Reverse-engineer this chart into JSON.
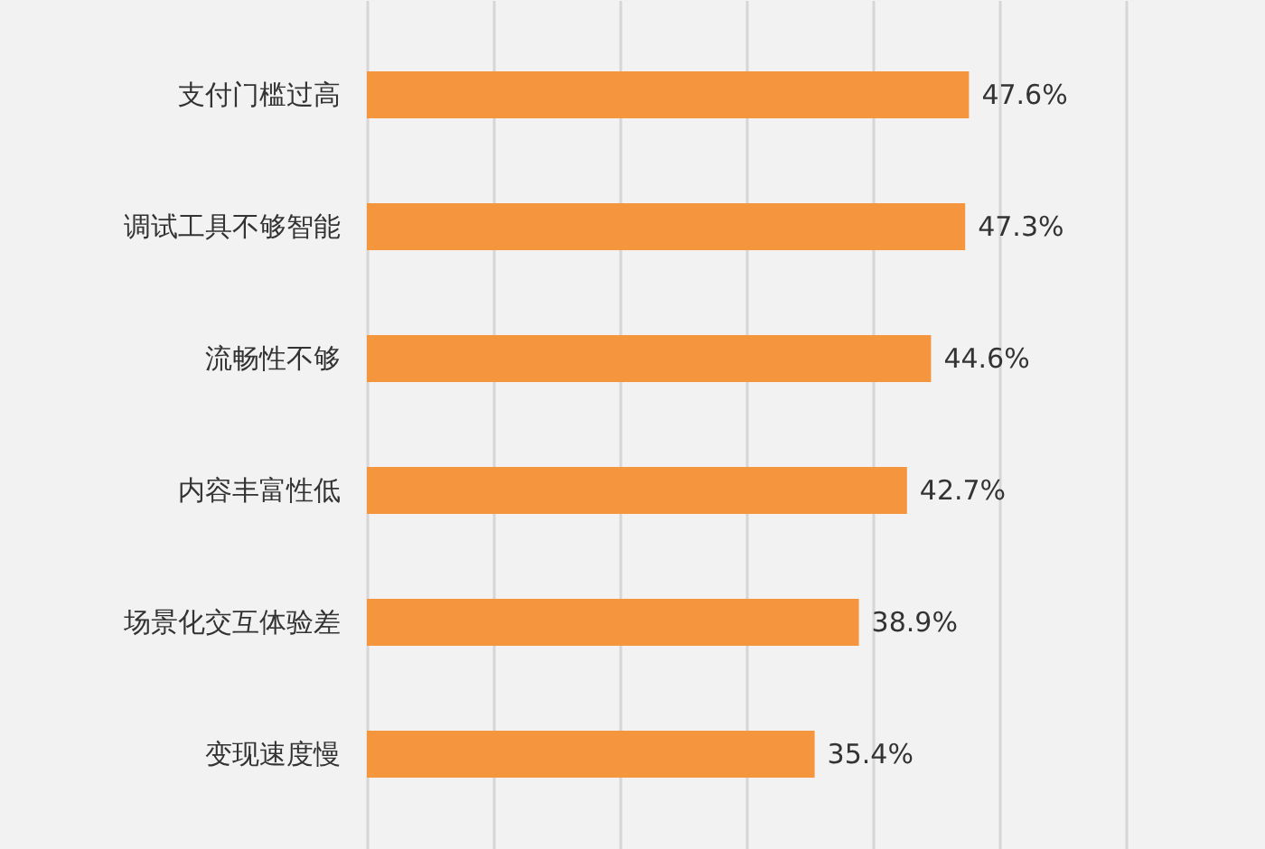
{
  "chart_data": {
    "type": "bar",
    "orientation": "horizontal",
    "categories": [
      "支付门槛过高",
      "调试工具不够智能",
      "流畅性不够",
      "内容丰富性低",
      "场景化交互体验差",
      "变现速度慢"
    ],
    "values": [
      47.6,
      47.3,
      44.6,
      42.7,
      38.9,
      35.4
    ],
    "value_labels": [
      "47.6%",
      "47.3%",
      "44.6%",
      "42.7%",
      "38.9%",
      "35.4%"
    ],
    "color": "#f5963f",
    "xlim": [
      0,
      71
    ],
    "xticks": [
      {
        "value": 0,
        "label": null
      },
      {
        "value": 10,
        "label": null
      },
      {
        "value": 20,
        "label": null
      },
      {
        "value": 30,
        "label": null
      },
      {
        "value": 40,
        "label": null
      },
      {
        "value": 50,
        "label": null
      },
      {
        "value": 60,
        "label": null
      }
    ],
    "grid": "x",
    "tick_labels": "y"
  }
}
